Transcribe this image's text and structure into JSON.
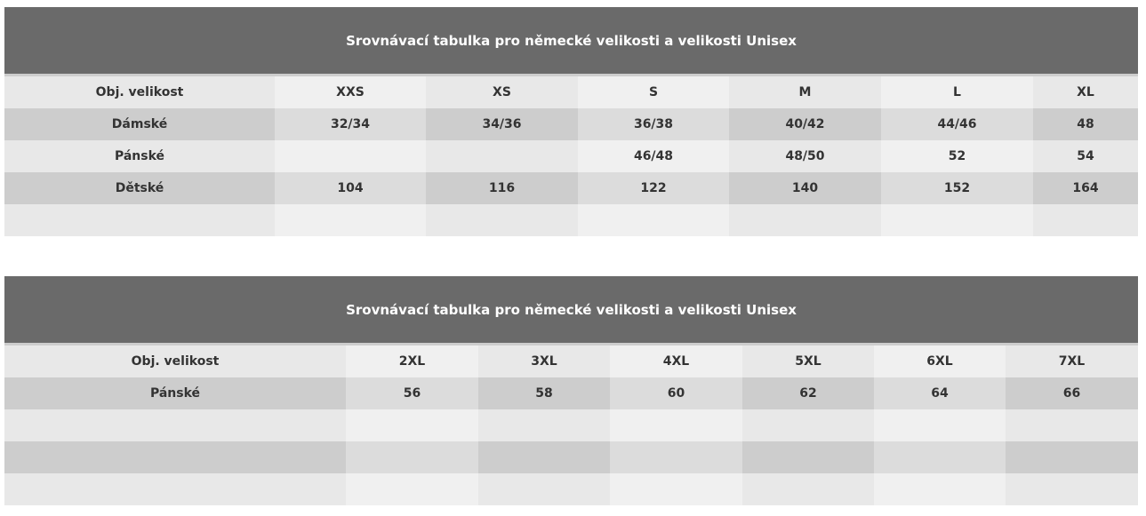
{
  "tables": [
    {
      "title": "Srovnávací tabulka pro německé velikosti a velikosti Unisex",
      "rows": [
        [
          "Obj. velikost",
          "XXS",
          "XS",
          "S",
          "M",
          "L",
          "XL"
        ],
        [
          "Dámské",
          "32/34",
          "34/36",
          "36/38",
          "40/42",
          "44/46",
          "48"
        ],
        [
          "Pánské",
          "",
          "",
          "46/48",
          "48/50",
          "52",
          "54"
        ],
        [
          "Dětské",
          "104",
          "116",
          "122",
          "140",
          "152",
          "164"
        ],
        [
          "",
          "",
          "",
          "",
          "",
          "",
          ""
        ]
      ]
    },
    {
      "title": "Srovnávací tabulka pro německé velikosti a velikosti Unisex",
      "rows": [
        [
          "Obj. velikost",
          "2XL",
          "3XL",
          "4XL",
          "5XL",
          "6XL",
          "7XL"
        ],
        [
          "Pánské",
          "56",
          "58",
          "60",
          "62",
          "64",
          "66"
        ],
        [
          "",
          "",
          "",
          "",
          "",
          "",
          ""
        ],
        [
          "",
          "",
          "",
          "",
          "",
          "",
          ""
        ],
        [
          "",
          "",
          "",
          "",
          "",
          "",
          ""
        ]
      ]
    }
  ]
}
